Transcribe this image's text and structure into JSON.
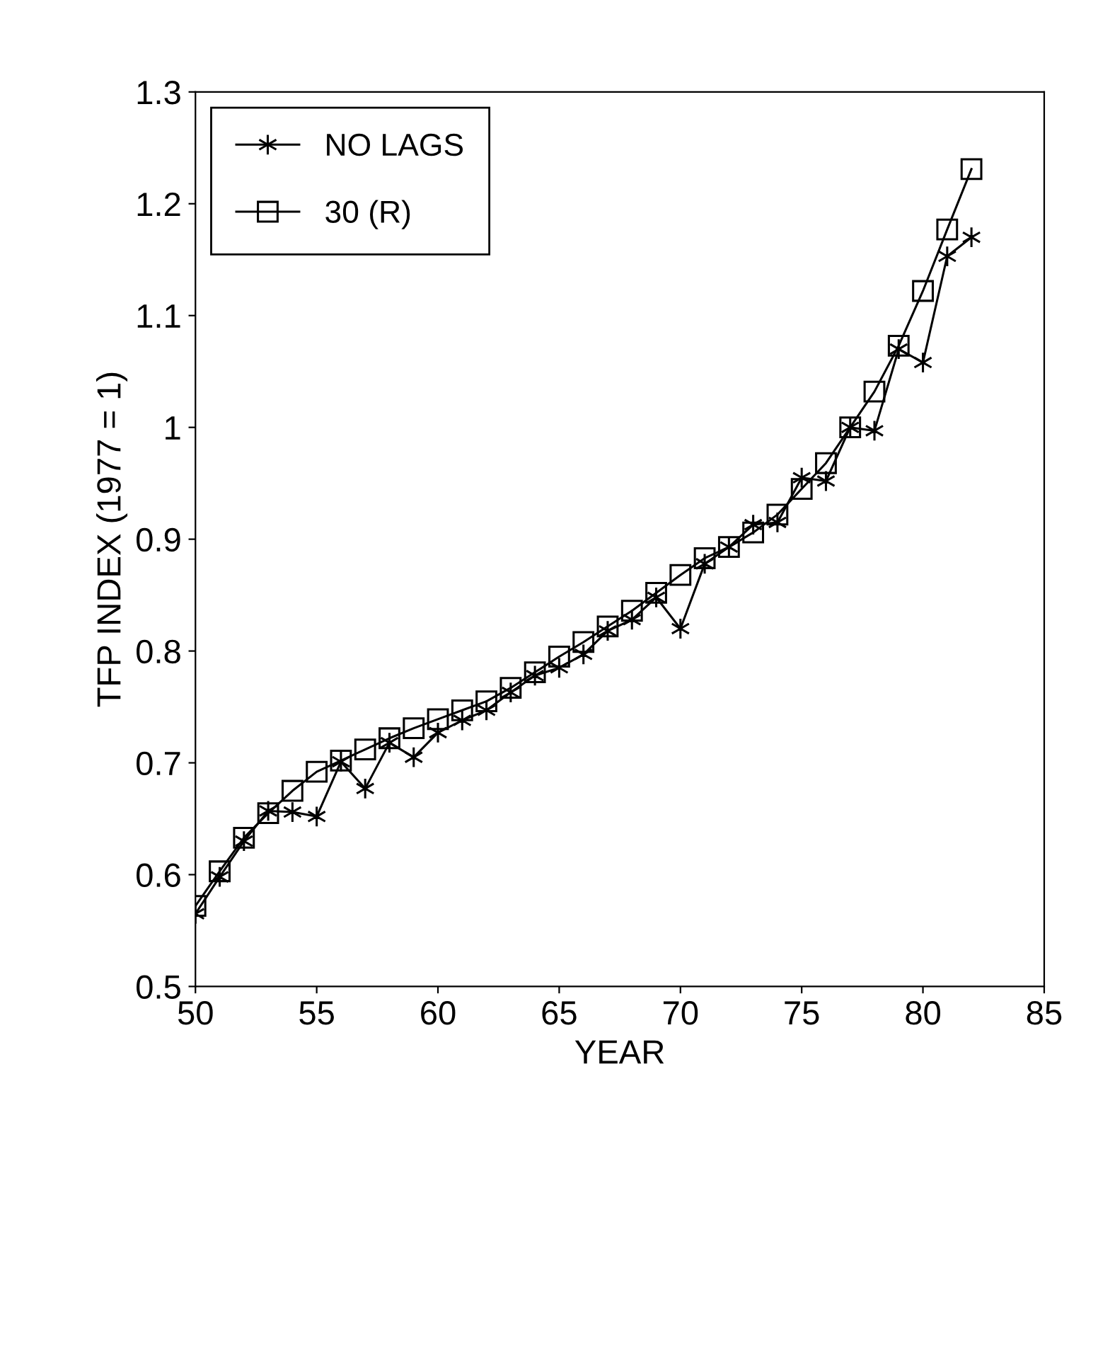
{
  "chart_data": {
    "type": "line",
    "xlabel": "YEAR",
    "ylabel": "TFP INDEX (1977 = 1)",
    "x": [
      50,
      51,
      52,
      53,
      54,
      55,
      56,
      57,
      58,
      59,
      60,
      61,
      62,
      63,
      64,
      65,
      66,
      67,
      68,
      69,
      70,
      71,
      72,
      73,
      74,
      75,
      76,
      77,
      78,
      79,
      80,
      81,
      82
    ],
    "series": [
      {
        "name": "NO LAGS",
        "color": "#000000",
        "marker": "cross",
        "values": [
          0.565,
          0.598,
          0.63,
          0.657,
          0.656,
          0.652,
          0.701,
          0.677,
          0.718,
          0.705,
          0.727,
          0.738,
          0.747,
          0.763,
          0.778,
          0.785,
          0.797,
          0.818,
          0.828,
          0.848,
          0.82,
          0.878,
          0.893,
          0.913,
          0.915,
          0.955,
          0.952,
          1.0,
          0.997,
          1.07,
          1.058,
          1.153,
          1.17
        ]
      },
      {
        "name": "30 (R)",
        "color": "#000000",
        "marker": "square",
        "values": [
          0.572,
          0.603,
          0.633,
          0.655,
          0.675,
          0.692,
          0.702,
          0.712,
          0.722,
          0.731,
          0.739,
          0.747,
          0.755,
          0.767,
          0.781,
          0.795,
          0.808,
          0.822,
          0.836,
          0.852,
          0.868,
          0.883,
          0.893,
          0.906,
          0.922,
          0.945,
          0.968,
          1.0,
          1.032,
          1.073,
          1.122,
          1.177,
          1.231
        ]
      }
    ],
    "xlim": [
      50,
      85
    ],
    "xticks": [
      50,
      55,
      60,
      65,
      70,
      75,
      80,
      85
    ],
    "ylim": [
      0.5,
      1.3
    ],
    "yticks": [
      0.5,
      0.6,
      0.7,
      0.8,
      0.9,
      1,
      1.1,
      1.2,
      1.3
    ],
    "grid": false,
    "legend": "top left",
    "line_style": "solid"
  }
}
